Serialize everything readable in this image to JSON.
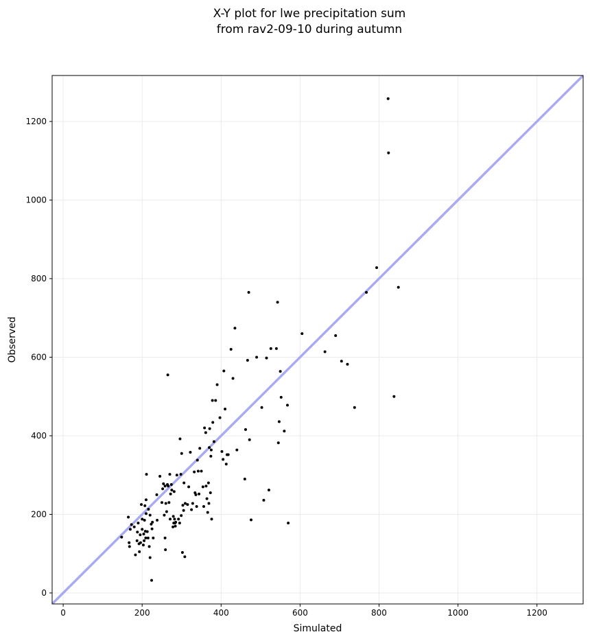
{
  "chart_data": {
    "type": "scatter",
    "title_lines": [
      "X-Y plot for lwe precipitation sum",
      "from rav2-09-10 during autumn"
    ],
    "xlabel": "Simulated",
    "ylabel": "Observed",
    "xlim": [
      -28,
      1317
    ],
    "ylim": [
      -28,
      1317
    ],
    "xticks": [
      0,
      200,
      400,
      600,
      800,
      1000,
      1200
    ],
    "yticks": [
      0,
      200,
      400,
      600,
      800,
      1000,
      1200
    ],
    "grid": true,
    "colors": {
      "points": "#000000",
      "reference_line": "#aaaaf2",
      "grid": "#ebebeb"
    },
    "reference_line": {
      "x": [
        -28,
        1317
      ],
      "y": [
        -28,
        1317
      ]
    },
    "points": [
      [
        148,
        142
      ],
      [
        165,
        193
      ],
      [
        167,
        128
      ],
      [
        168,
        118
      ],
      [
        170,
        162
      ],
      [
        173,
        174
      ],
      [
        180,
        168
      ],
      [
        183,
        97
      ],
      [
        187,
        133
      ],
      [
        188,
        155
      ],
      [
        190,
        178
      ],
      [
        192,
        125
      ],
      [
        193,
        105
      ],
      [
        195,
        148
      ],
      [
        196,
        128
      ],
      [
        198,
        225
      ],
      [
        200,
        188
      ],
      [
        200,
        162
      ],
      [
        203,
        122
      ],
      [
        204,
        150
      ],
      [
        205,
        133
      ],
      [
        206,
        185
      ],
      [
        207,
        222
      ],
      [
        208,
        157
      ],
      [
        209,
        140
      ],
      [
        210,
        202
      ],
      [
        210,
        237
      ],
      [
        211,
        302
      ],
      [
        213,
        156
      ],
      [
        215,
        140
      ],
      [
        216,
        213
      ],
      [
        218,
        118
      ],
      [
        220,
        90
      ],
      [
        220,
        198
      ],
      [
        223,
        175
      ],
      [
        225,
        163
      ],
      [
        226,
        180
      ],
      [
        228,
        140
      ],
      [
        224,
        32
      ],
      [
        237,
        250
      ],
      [
        238,
        185
      ],
      [
        245,
        297
      ],
      [
        250,
        230
      ],
      [
        252,
        265
      ],
      [
        254,
        278
      ],
      [
        256,
        198
      ],
      [
        258,
        272
      ],
      [
        258,
        140
      ],
      [
        259,
        110
      ],
      [
        260,
        228
      ],
      [
        262,
        207
      ],
      [
        264,
        276
      ],
      [
        265,
        555
      ],
      [
        266,
        272
      ],
      [
        268,
        230
      ],
      [
        270,
        302
      ],
      [
        271,
        188
      ],
      [
        272,
        252
      ],
      [
        274,
        276
      ],
      [
        275,
        262
      ],
      [
        278,
        168
      ],
      [
        279,
        195
      ],
      [
        280,
        178
      ],
      [
        281,
        258
      ],
      [
        282,
        188
      ],
      [
        283,
        178
      ],
      [
        284,
        170
      ],
      [
        285,
        180
      ],
      [
        288,
        300
      ],
      [
        292,
        188
      ],
      [
        295,
        178
      ],
      [
        296,
        392
      ],
      [
        298,
        302
      ],
      [
        299,
        197
      ],
      [
        300,
        355
      ],
      [
        302,
        103
      ],
      [
        303,
        223
      ],
      [
        305,
        210
      ],
      [
        306,
        280
      ],
      [
        308,
        92
      ],
      [
        309,
        228
      ],
      [
        315,
        225
      ],
      [
        318,
        270
      ],
      [
        322,
        358
      ],
      [
        325,
        212
      ],
      [
        328,
        228
      ],
      [
        332,
        308
      ],
      [
        334,
        255
      ],
      [
        336,
        250
      ],
      [
        338,
        220
      ],
      [
        340,
        338
      ],
      [
        342,
        310
      ],
      [
        344,
        252
      ],
      [
        346,
        368
      ],
      [
        350,
        310
      ],
      [
        354,
        270
      ],
      [
        356,
        220
      ],
      [
        358,
        420
      ],
      [
        361,
        408
      ],
      [
        362,
        272
      ],
      [
        364,
        240
      ],
      [
        366,
        205
      ],
      [
        368,
        280
      ],
      [
        369,
        228
      ],
      [
        370,
        370
      ],
      [
        371,
        418
      ],
      [
        373,
        255
      ],
      [
        374,
        348
      ],
      [
        375,
        364
      ],
      [
        376,
        188
      ],
      [
        378,
        490
      ],
      [
        379,
        434
      ],
      [
        382,
        385
      ],
      [
        386,
        490
      ],
      [
        390,
        530
      ],
      [
        397,
        446
      ],
      [
        402,
        360
      ],
      [
        405,
        340
      ],
      [
        407,
        565
      ],
      [
        410,
        468
      ],
      [
        413,
        328
      ],
      [
        415,
        352
      ],
      [
        418,
        352
      ],
      [
        425,
        620
      ],
      [
        430,
        546
      ],
      [
        435,
        674
      ],
      [
        440,
        364
      ],
      [
        460,
        290
      ],
      [
        462,
        416
      ],
      [
        467,
        592
      ],
      [
        470,
        765
      ],
      [
        472,
        390
      ],
      [
        476,
        186
      ],
      [
        490,
        600
      ],
      [
        503,
        472
      ],
      [
        508,
        236
      ],
      [
        515,
        598
      ],
      [
        521,
        262
      ],
      [
        526,
        622
      ],
      [
        540,
        622
      ],
      [
        543,
        740
      ],
      [
        545,
        382
      ],
      [
        547,
        436
      ],
      [
        550,
        564
      ],
      [
        552,
        498
      ],
      [
        560,
        412
      ],
      [
        568,
        478
      ],
      [
        570,
        178
      ],
      [
        605,
        660
      ],
      [
        663,
        614
      ],
      [
        690,
        655
      ],
      [
        705,
        590
      ],
      [
        720,
        582
      ],
      [
        738,
        472
      ],
      [
        768,
        765
      ],
      [
        794,
        828
      ],
      [
        823,
        1258
      ],
      [
        824,
        1120
      ],
      [
        838,
        500
      ],
      [
        849,
        778
      ]
    ]
  }
}
